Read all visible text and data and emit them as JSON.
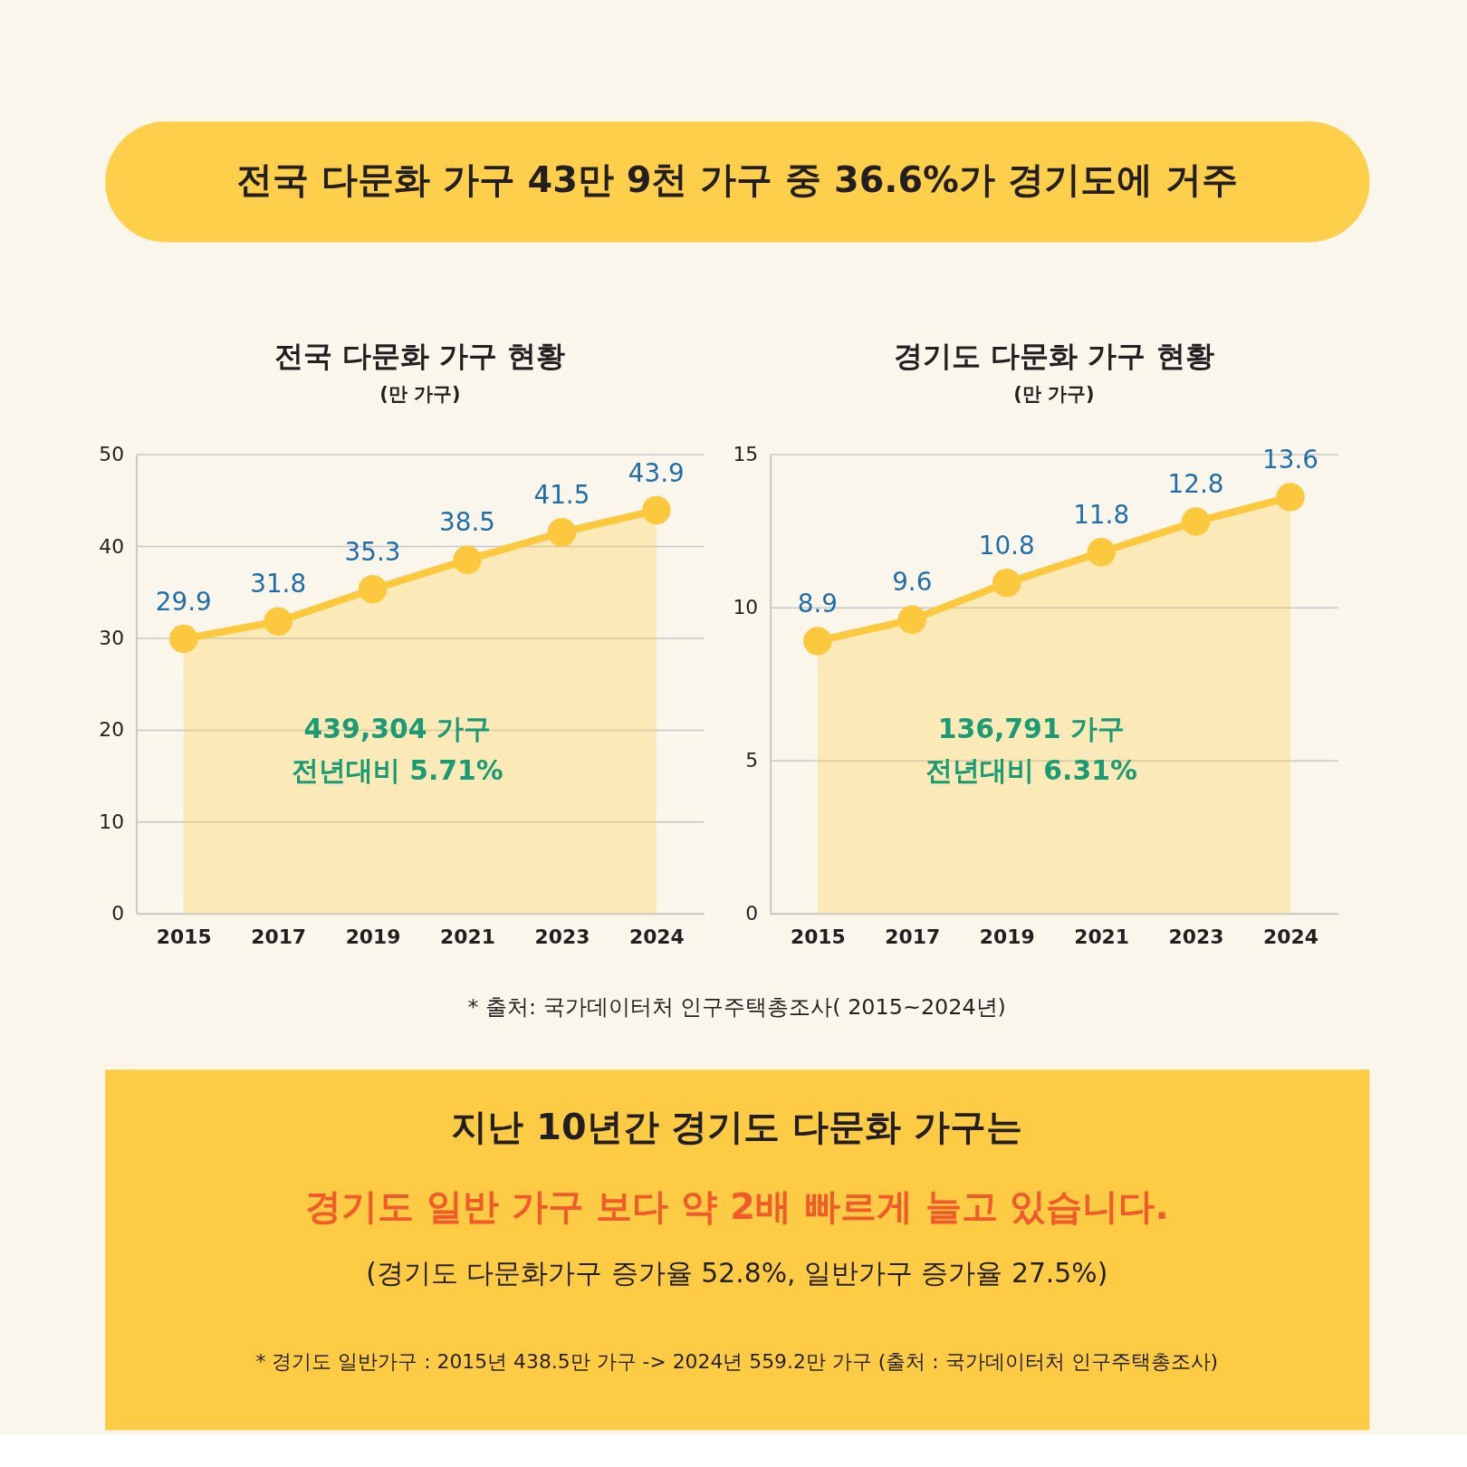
{
  "chart_data": [
    {
      "type": "other",
      "title": "전국 다문화 가구 43만 9천 가구 중 36.6%가 경기도에 거주"
    },
    {
      "type": "area",
      "title": "전국 다문화 가구 현황",
      "subtitle": "(만 가구)",
      "categories": [
        "2015",
        "2017",
        "2019",
        "2021",
        "2023",
        "2024"
      ],
      "series": [
        {
          "color": "#fcc93e",
          "values": [
            29.9,
            31.8,
            35.3,
            38.5,
            41.5,
            43.9
          ]
        }
      ],
      "ylim": [
        0,
        50
      ],
      "yticks": [
        0,
        10,
        20,
        30,
        40,
        50
      ],
      "grid": "y",
      "marker": "circle",
      "line_style": "solid",
      "data_labels": true,
      "annotations": [
        "439,304 가구",
        "전년대비 5.71%"
      ]
    },
    {
      "type": "area",
      "title": "경기도 다문화 가구 현황",
      "subtitle": "(만 가구)",
      "categories": [
        "2015",
        "2017",
        "2019",
        "2021",
        "2023",
        "2024"
      ],
      "series": [
        {
          "color": "#fcc93e",
          "values": [
            8.9,
            9.6,
            10.8,
            11.8,
            12.8,
            13.6
          ]
        }
      ],
      "ylim": [
        0,
        15
      ],
      "yticks": [
        0,
        5,
        10,
        15
      ],
      "grid": "y",
      "marker": "circle",
      "line_style": "solid",
      "data_labels": true,
      "annotations": [
        "136,791 가구",
        "전년대비 6.31%"
      ]
    },
    {
      "type": "other",
      "annotations": [
        "* 출처: 국가데이터처 인구주택총조사( 2015~2024년)"
      ]
    },
    {
      "type": "other",
      "title": "지난 10년간 경기도 다문화 가구는",
      "subtitle": "경기도 일반 가구 보다 약 2배 빠르게 늘고 있습니다.",
      "annotations": [
        "(경기도 다문화가구 증가율 52.8%, 일반가구 증가율 27.5%)",
        "* 경기도 일반가구 : 2015년 438.5만 가구 -> 2024년 559.2만 가구  (출처 : 국가데이터처 인구주택총조사)"
      ]
    }
  ]
}
